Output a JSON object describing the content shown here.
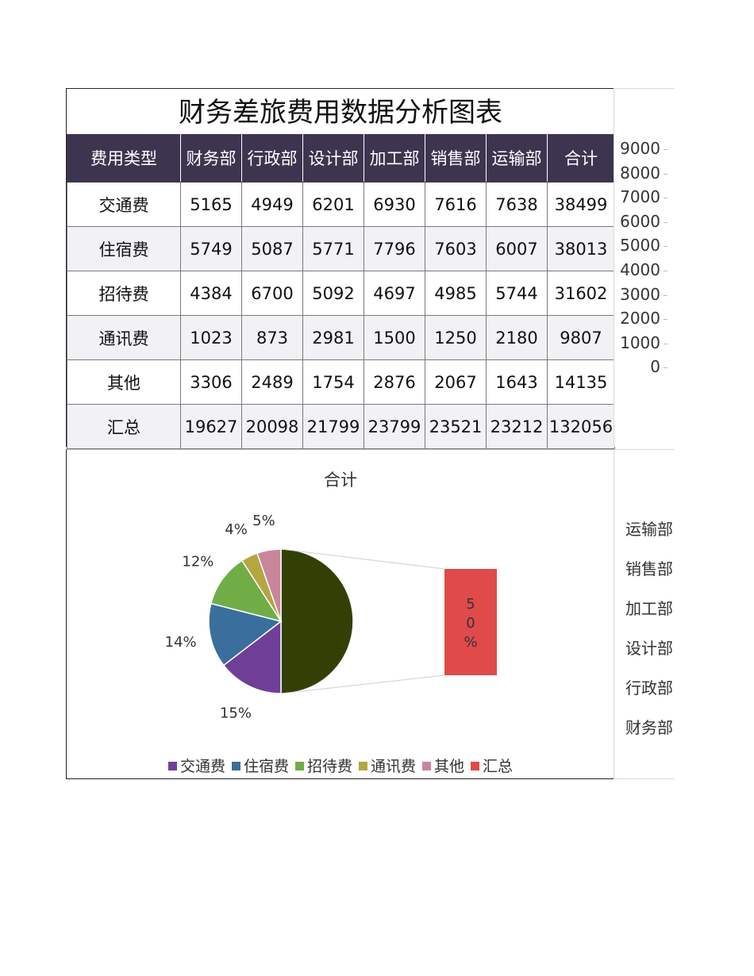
{
  "title": "财务差旅费用数据分析图表",
  "table": {
    "headers": [
      "费用类型",
      "财务部",
      "行政部",
      "设计部",
      "加工部",
      "销售部",
      "运输部",
      "合计"
    ],
    "rows": [
      [
        "交通费",
        "5165",
        "4949",
        "6201",
        "6930",
        "7616",
        "7638",
        "38499"
      ],
      [
        "住宿费",
        "5749",
        "5087",
        "5771",
        "7796",
        "7603",
        "6007",
        "38013"
      ],
      [
        "招待费",
        "4384",
        "6700",
        "5092",
        "4697",
        "4985",
        "5744",
        "31602"
      ],
      [
        "通讯费",
        "1023",
        "873",
        "2981",
        "1500",
        "1250",
        "2180",
        "9807"
      ],
      [
        "其他",
        "3306",
        "2489",
        "1754",
        "2876",
        "2067",
        "1643",
        "14135"
      ],
      [
        "汇总",
        "19627",
        "20098",
        "21799",
        "23799",
        "23521",
        "23212",
        "132056"
      ]
    ]
  },
  "right_chart": {
    "y_ticks": [
      "9000",
      "8000",
      "7000",
      "6000",
      "5000",
      "4000",
      "3000",
      "2000",
      "1000",
      "0"
    ],
    "categories": [
      "运输部",
      "销售部",
      "加工部",
      "设计部",
      "行政部",
      "财务部"
    ]
  },
  "chart_data": [
    {
      "type": "pie",
      "title": "合计",
      "style": "pie-of-pie",
      "categories": [
        "交通费",
        "住宿费",
        "招待费",
        "通讯费",
        "其他",
        "汇总"
      ],
      "values": [
        38499,
        38013,
        31602,
        9807,
        14135,
        132056
      ],
      "labels": [
        "15%",
        "14%",
        "12%",
        "4%",
        "5%",
        "50%"
      ],
      "colors": [
        "#6f3f98",
        "#3a6f9d",
        "#70ad47",
        "#b5a642",
        "#c9869b",
        "#e04a4a"
      ],
      "main_slice_color": "#334005",
      "legend_position": "bottom"
    }
  ]
}
